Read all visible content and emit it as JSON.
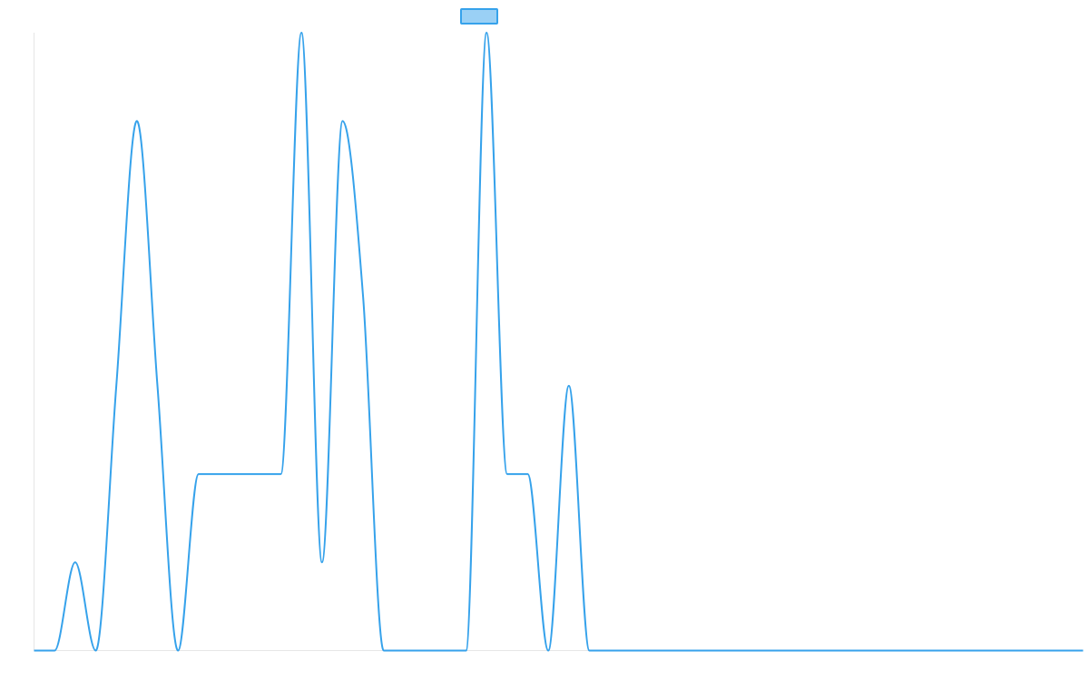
{
  "chart_data": {
    "type": "line",
    "title": "",
    "xlabel": "",
    "ylabel": "",
    "legend": {
      "placement": "top-center",
      "label": ""
    },
    "grid": false,
    "smooth": true,
    "ylim": [
      0,
      7
    ],
    "x": [
      0,
      1,
      2,
      3,
      4,
      5,
      6,
      7,
      8,
      9,
      10,
      11,
      12,
      13,
      14,
      15,
      16,
      17,
      18,
      19,
      20,
      21,
      22,
      23,
      24,
      25,
      26,
      27,
      28,
      29,
      30,
      31,
      32,
      33,
      34,
      35,
      36,
      37,
      38,
      39,
      40,
      41,
      42,
      43,
      44,
      45,
      46,
      47,
      48,
      49,
      50,
      51
    ],
    "series": [
      {
        "color": "#36a2eb",
        "fill": "#9ad0f5",
        "values": [
          0,
          0,
          1,
          0,
          3,
          6,
          3,
          0,
          2,
          2,
          2,
          2,
          2,
          7,
          1,
          6,
          4,
          0,
          0,
          0,
          0,
          0,
          7,
          2,
          2,
          0,
          3,
          0,
          0,
          0,
          0,
          0,
          0,
          0,
          0,
          0,
          0,
          0,
          0,
          0,
          0,
          0,
          0,
          0,
          0,
          0,
          0,
          0,
          0,
          0,
          0,
          0
        ]
      }
    ]
  }
}
